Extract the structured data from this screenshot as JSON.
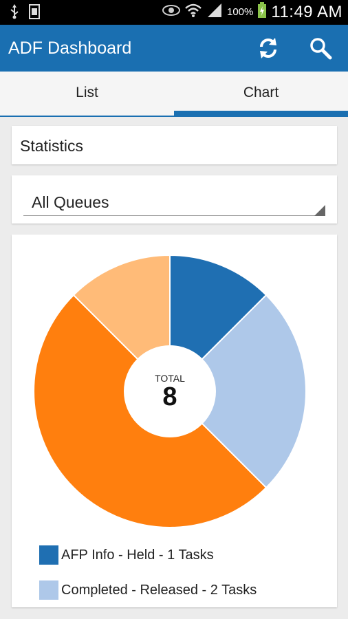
{
  "status_bar": {
    "icons": [
      "usb-icon",
      "screenshot-icon",
      "eye-icon",
      "wifi-icon",
      "signal-icon",
      "battery-icon"
    ],
    "battery": "100%",
    "time": "11:49 AM"
  },
  "app_bar": {
    "title": "ADF Dashboard",
    "color": "#1a6fb1",
    "actions": [
      "refresh-icon",
      "search-icon"
    ]
  },
  "tabs": {
    "items": [
      "List",
      "Chart"
    ],
    "selected": "Chart"
  },
  "statistics": {
    "label": "Statistics"
  },
  "queue_select": {
    "value": "All Queues"
  },
  "chart_data": {
    "type": "pie",
    "center_label": "TOTAL",
    "center_value": "8",
    "slices": [
      {
        "label": "AFP Info - Held - 1 Tasks",
        "value": 1,
        "color": "#1f6fb2"
      },
      {
        "label": "Completed - Released - 2 Tasks",
        "value": 2,
        "color": "#aec8e9"
      },
      {
        "label": "",
        "value": 4,
        "color": "#ff7f0e"
      },
      {
        "label": "",
        "value": 1,
        "color": "#ffbb78"
      }
    ],
    "total": 8
  }
}
